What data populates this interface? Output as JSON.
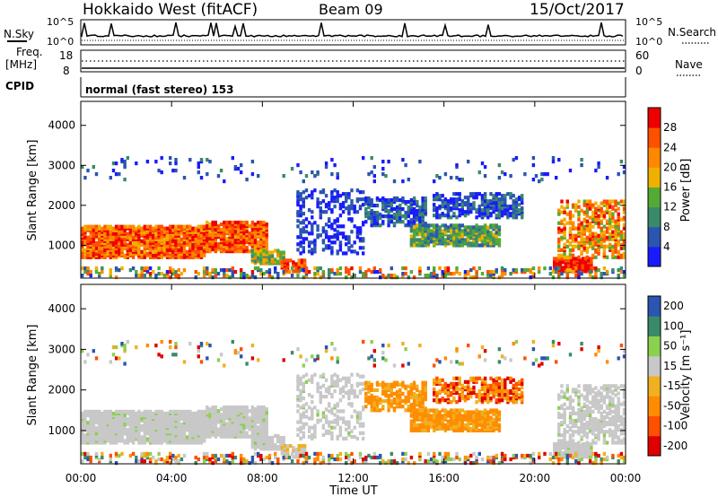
{
  "header": {
    "radar": "Hokkaido West (fitACF)",
    "beam": "Beam 09",
    "date": "15/Oct/2017"
  },
  "noise_panel": {
    "left_label": "N.Sky",
    "right_label": "N.Search",
    "ticks": [
      "10^5",
      "10^0"
    ]
  },
  "freq_panel": {
    "left_label_line1": "Freq.",
    "left_label_line2": "[MHz]",
    "left_ticks": [
      "18",
      "8"
    ],
    "right_ticks": [
      "60",
      "0"
    ],
    "right_label": "Nave"
  },
  "cpid": {
    "label": "CPID",
    "mode": "normal (fast stereo) 153"
  },
  "colors": {
    "power_scale": [
      "#1a1aff",
      "#2a55b0",
      "#3a8a6a",
      "#55aa33",
      "#f0b000",
      "#ff8800",
      "#ff5000",
      "#ee0000"
    ],
    "velocity_scale": [
      "#e00000",
      "#ff5000",
      "#ff8c00",
      "#f0b020",
      "#c8c8c8",
      "#8cd050",
      "#3a8a6a",
      "#2a55b0"
    ],
    "grey": "#c8c8c8"
  },
  "chart_data": [
    {
      "type": "heatmap",
      "name": "power",
      "ylabel": "Slant Range [km]",
      "xlabel": "Time UT",
      "x_ticks": [
        "00:00",
        "04:00",
        "08:00",
        "12:00",
        "16:00",
        "20:00",
        "00:00"
      ],
      "xlim_hours": [
        0,
        24
      ],
      "ylim_km": [
        180,
        4600
      ],
      "y_ticks": [
        "1000",
        "2000",
        "3000",
        "4000"
      ],
      "y_tick_values": [
        1000,
        2000,
        3000,
        4000
      ],
      "colorbar_label": "Power [dB]",
      "colorbar_ticks": [
        "4",
        "8",
        "12",
        "16",
        "20",
        "24",
        "28"
      ]
    },
    {
      "type": "heatmap",
      "name": "velocity",
      "ylabel": "Slant Range [km]",
      "xlabel": "Time UT",
      "x_ticks": [
        "00:00",
        "04:00",
        "08:00",
        "12:00",
        "16:00",
        "20:00",
        "00:00"
      ],
      "xlim_hours": [
        0,
        24
      ],
      "ylim_km": [
        180,
        4600
      ],
      "y_ticks": [
        "1000",
        "2000",
        "3000",
        "4000"
      ],
      "y_tick_values": [
        1000,
        2000,
        3000,
        4000
      ],
      "colorbar_label": "Velocity [m s⁻¹]",
      "colorbar_ticks": [
        "200",
        "100",
        "50",
        "15",
        "-15",
        "-50",
        "-100",
        "-200"
      ]
    }
  ]
}
